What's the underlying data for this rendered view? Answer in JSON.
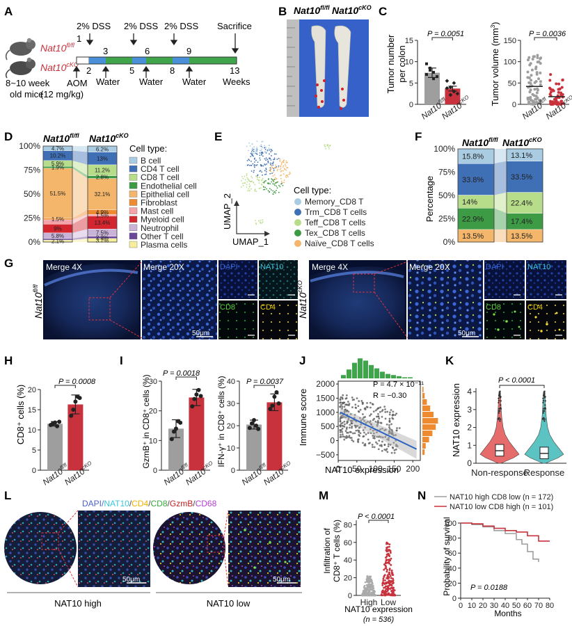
{
  "panels": [
    "A",
    "B",
    "C",
    "D",
    "E",
    "F",
    "G",
    "H",
    "I",
    "J",
    "K",
    "L",
    "M",
    "N"
  ],
  "genotype": {
    "fl": "Nat10",
    "fl_sup": "fl/fl",
    "cko": "Nat10",
    "cko_sup": "cKO"
  },
  "panel_a": {
    "mice_label_1": "8~10 week",
    "mice_label_2": "old mice",
    "aom_1": "AOM",
    "aom_2": "(12 mg/kg)",
    "dss": "2% DSS",
    "water": "Water",
    "sacrifice": "Sacrifice",
    "weeks": "Weeks",
    "ticks": [
      "1",
      "2",
      "3",
      "5",
      "6",
      "8",
      "9",
      "13"
    ]
  },
  "panel_b": {
    "ruler_marks": [
      "1",
      "2",
      "3",
      "4",
      "5",
      "6",
      "7",
      "8",
      "9"
    ]
  },
  "panel_c": {
    "left_ylabel_1": "Tumor number",
    "left_ylabel_2": "per colon",
    "left_p": "P = 0.0051",
    "right_ylabel": "Tumor volume (mm",
    "right_ylabel_sup": "3",
    "right_p": "P = 0.0036",
    "colors": {
      "fl": "#9e9e9e",
      "cko": "#c8323c"
    }
  },
  "panel_d": {
    "legend_title": "Cell type:",
    "legend": [
      {
        "name": "B cell",
        "color": "#a9cce3"
      },
      {
        "name": "CD4 T cell",
        "color": "#3f6fb5"
      },
      {
        "name": "CD8 T cell",
        "color": "#b8dd8a"
      },
      {
        "name": "Endothelial cell",
        "color": "#3e9b45"
      },
      {
        "name": "Epithelial cell",
        "color": "#f3b66a"
      },
      {
        "name": "Fibroblast",
        "color": "#ee8a2f"
      },
      {
        "name": "Mast cell",
        "color": "#f4a3a8"
      },
      {
        "name": "Myeloid cell",
        "color": "#d3262e"
      },
      {
        "name": "Neutrophil",
        "color": "#c9b3d9"
      },
      {
        "name": "Other T cell",
        "color": "#6a4897"
      },
      {
        "name": "Plasma cells",
        "color": "#f6ee9a"
      }
    ],
    "fl_labels": [
      "4.7%",
      "10.2%",
      "5.9%",
      "1.9%",
      "51.5%",
      "1.5%",
      "9%",
      "5.8%",
      "2.1%"
    ],
    "cko_labels": [
      "6.2%",
      "13%",
      "11.2%",
      "2.8%",
      "32.1%",
      "4.9%",
      "1.5%",
      "13.4%",
      "7.5%",
      "2.2%",
      "3.7%"
    ],
    "yticks": [
      "100%",
      "75%",
      "50%",
      "25%",
      "0%"
    ]
  },
  "panel_e": {
    "axis_y": "UMAP_2",
    "axis_x": "UMAP_1",
    "legend_title": "Cell type:",
    "legend": [
      {
        "name": "Memory_CD8 T",
        "color": "#a9cce3"
      },
      {
        "name": "Trm_CD8 T cells",
        "color": "#3f6fb5"
      },
      {
        "name": "Teff_CD8 T cells",
        "color": "#b8dd8a"
      },
      {
        "name": "Tex_CD8 T cells",
        "color": "#3e9b45"
      },
      {
        "name": "Naïve_CD8 T cells",
        "color": "#f3b66a"
      }
    ]
  },
  "panel_f": {
    "ylabel": "Percentage",
    "yticks": [
      "100%",
      "75%",
      "50%",
      "25%",
      "0%"
    ],
    "fl_labels": [
      "15.8%",
      "33.8%",
      "14%",
      "22.9%",
      "13.5%"
    ],
    "cko_labels": [
      "13.1%",
      "33.5%",
      "22.4%",
      "17.4%",
      "13.5%"
    ]
  },
  "panel_g": {
    "merge4x": "Merge 4X",
    "merge20x": "Merge 20X",
    "dapi": "DAPI",
    "nat10": "NAT10",
    "cd8": "CD8",
    "cd4": "CD4",
    "scale": "50μm"
  },
  "panel_h": {
    "ylabel": "CD8⁺ cells (%)",
    "p": "P = 0.0008",
    "yticks": [
      "0",
      "5",
      "10",
      "15",
      "20"
    ]
  },
  "panel_i": {
    "left_ylabel": "GzmB⁺ in CD8⁺ cells (%)",
    "left_p": "P = 0.0018",
    "left_yticks": [
      "0",
      "10",
      "20",
      "30"
    ],
    "right_ylabel": "IFN-γ⁺ in CD8⁺ cells (%)",
    "right_p": "P = 0.0037",
    "right_yticks": [
      "0",
      "10",
      "20",
      "30",
      "40"
    ]
  },
  "panel_j": {
    "ylabel": "Immune score",
    "xlabel": "NAT10 expression",
    "p": "P = 4.7 × 10⁻¹¹",
    "r": "R = −0.30",
    "yticks": [
      "2000",
      "1500",
      "1000",
      "500",
      "0",
      "−500"
    ],
    "xticks": [
      "0",
      "50",
      "100",
      "150",
      "200"
    ]
  },
  "panel_k": {
    "ylabel": "NAT10 expression",
    "p": "P < 0.0001",
    "groups": [
      "Non-response",
      "Response"
    ],
    "yticks": [
      "0",
      "1",
      "2",
      "3",
      "4"
    ],
    "colors": {
      "non": "#e66b6b",
      "resp": "#5cc3c3"
    }
  },
  "panel_l": {
    "stain_labels": [
      {
        "text": "DAPI/",
        "color": "#4a5fd0"
      },
      {
        "text": "NAT10",
        "color": "#39c7d8"
      },
      {
        "text": "/",
        "color": "#444"
      },
      {
        "text": "CD4",
        "color": "#f0b400"
      },
      {
        "text": "/",
        "color": "#444"
      },
      {
        "text": "CD8",
        "color": "#38a83b"
      },
      {
        "text": "/",
        "color": "#444"
      },
      {
        "text": "GzmB",
        "color": "#c21f1f"
      },
      {
        "text": "/",
        "color": "#444"
      },
      {
        "text": "CD68",
        "color": "#b23ed1"
      }
    ],
    "high": "NAT10 high",
    "low": "NAT10 low",
    "scale": "50μm"
  },
  "panel_m": {
    "ylabel_1": "Infiltration of",
    "ylabel_2": "CD8⁺ T cells (%)",
    "p": "P < 0.0001",
    "groups": [
      "High",
      "Low"
    ],
    "xlabel": "NAT10 expression",
    "n": "(n = 536)",
    "yticks": [
      "0",
      "20",
      "40",
      "60",
      "80"
    ]
  },
  "panel_n": {
    "legend": [
      {
        "label": "NAT10 high CD8 low (n = 172)",
        "color": "#9e9e9e"
      },
      {
        "label": "NAT10 low CD8 high (n = 101)",
        "color": "#c8323c"
      }
    ],
    "ylabel": "Probability of survival",
    "xlabel": "Months",
    "p": "P = 0.0188",
    "yticks": [
      "0",
      "20",
      "40",
      "60",
      "80",
      "100"
    ],
    "xticks": [
      "0",
      "10",
      "20",
      "30",
      "40",
      "50",
      "60",
      "70",
      "80"
    ]
  },
  "chart_data": [
    {
      "type": "bar",
      "panel": "C-left",
      "categories": [
        "Nat10 fl/fl",
        "Nat10 cKO"
      ],
      "values": [
        7.4,
        3.7
      ],
      "ylim": [
        0,
        15
      ],
      "yticks": [
        0,
        5,
        10,
        15
      ]
    },
    {
      "type": "scatter",
      "panel": "C-right",
      "categories": [
        "Nat10 fl/fl",
        "Nat10 cKO"
      ],
      "means": [
        42,
        18
      ],
      "ylim": [
        0,
        150
      ],
      "yticks": [
        0,
        50,
        100,
        150
      ]
    },
    {
      "type": "bar",
      "panel": "D",
      "categories": [
        "Nat10 fl/fl",
        "Nat10 cKO"
      ],
      "stacked": true,
      "series": [
        {
          "name": "Plasma cells",
          "values": [
            2.1,
            3.7
          ]
        },
        {
          "name": "Other T cell",
          "values": [
            1.5,
            2.2
          ]
        },
        {
          "name": "Neutrophil",
          "values": [
            5.8,
            7.5
          ]
        },
        {
          "name": "Myeloid cell",
          "values": [
            9.0,
            13.4
          ]
        },
        {
          "name": "Mast cell",
          "values": [
            4.5,
            1.5
          ]
        },
        {
          "name": "Fibroblast",
          "values": [
            1.5,
            4.9
          ]
        },
        {
          "name": "Epithelial cell",
          "values": [
            51.5,
            32.1
          ]
        },
        {
          "name": "Endothelial cell",
          "values": [
            1.9,
            2.8
          ]
        },
        {
          "name": "CD8 T cell",
          "values": [
            5.9,
            11.2
          ]
        },
        {
          "name": "CD4 T cell",
          "values": [
            10.2,
            13.0
          ]
        },
        {
          "name": "B cell",
          "values": [
            4.7,
            6.2
          ]
        }
      ]
    },
    {
      "type": "bar",
      "panel": "F",
      "categories": [
        "Nat10 fl/fl",
        "Nat10 cKO"
      ],
      "stacked": true,
      "series": [
        {
          "name": "Naïve_CD8 T cells",
          "values": [
            13.5,
            13.5
          ]
        },
        {
          "name": "Tex_CD8 T cells",
          "values": [
            22.9,
            17.4
          ]
        },
        {
          "name": "Teff_CD8 T cells",
          "values": [
            14.0,
            22.4
          ]
        },
        {
          "name": "Trm_CD8 T cells",
          "values": [
            33.8,
            33.5
          ]
        },
        {
          "name": "Memory_CD8 T",
          "values": [
            15.8,
            13.1
          ]
        }
      ]
    },
    {
      "type": "bar",
      "panel": "H",
      "categories": [
        "Nat10 fl/fl",
        "Nat10 cKO"
      ],
      "values": [
        11.5,
        16.3
      ],
      "points": [
        [
          11.2,
          11.5,
          11.8,
          10.9,
          12.0
        ],
        [
          13.5,
          15.0,
          17.0,
          18.2,
          17.9
        ]
      ],
      "ylim": [
        0,
        20
      ]
    },
    {
      "type": "bar",
      "panel": "I-left",
      "categories": [
        "Nat10 fl/fl",
        "Nat10 cKO"
      ],
      "values": [
        14.0,
        24.5
      ],
      "points": [
        [
          10.5,
          13.0,
          14.0,
          16.5,
          16.0
        ],
        [
          21.5,
          24.0,
          25.5,
          27.0,
          25.0
        ]
      ],
      "ylim": [
        0,
        30
      ]
    },
    {
      "type": "bar",
      "panel": "I-right",
      "categories": [
        "Nat10 fl/fl",
        "Nat10 cKO"
      ],
      "values": [
        20.5,
        30.5
      ],
      "points": [
        [
          19.0,
          21.0,
          22.5,
          20.0,
          18.5
        ],
        [
          27.5,
          29.0,
          33.0,
          35.0,
          30.0
        ]
      ],
      "ylim": [
        0,
        40
      ]
    },
    {
      "type": "line",
      "panel": "N",
      "x_label": "Months",
      "series": [
        {
          "name": "NAT10 high CD8 low (n = 172)",
          "x": [
            0,
            10,
            20,
            30,
            40,
            50,
            55,
            60,
            65,
            70
          ],
          "y": [
            100,
            98,
            95,
            90,
            86,
            78,
            72,
            62,
            52,
            48
          ]
        },
        {
          "name": "NAT10 low CD8 high (n = 101)",
          "x": [
            0,
            10,
            20,
            30,
            40,
            50,
            60,
            70,
            80
          ],
          "y": [
            100,
            99,
            96,
            93,
            90,
            88,
            83,
            76,
            76
          ]
        }
      ],
      "ylim": [
        0,
        100
      ],
      "xlim": [
        0,
        80
      ]
    }
  ]
}
